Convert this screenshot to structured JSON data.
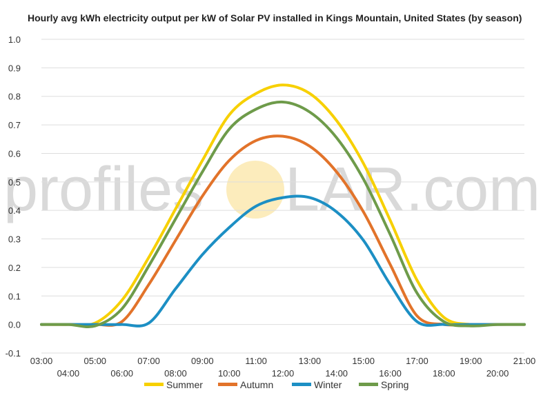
{
  "watermark": {
    "left": "profiles",
    "right": "LAR.com"
  },
  "chart_data": {
    "type": "line",
    "title": "Hourly avg kWh electricity output per kW of Solar PV installed in Kings Mountain, United States (by season)",
    "xlabel": "",
    "ylabel": "",
    "ylim": [
      -0.1,
      1.0
    ],
    "yticks": [
      "1.0",
      "0.9",
      "0.8",
      "0.7",
      "0.6",
      "0.5",
      "0.4",
      "0.3",
      "0.2",
      "0.1",
      "0.0",
      "-0.1"
    ],
    "x_ticks_upper": [
      "03:00",
      "05:00",
      "07:00",
      "09:00",
      "11:00",
      "13:00",
      "15:00",
      "17:00",
      "19:00",
      "21:00"
    ],
    "x_ticks_lower": [
      "04:00",
      "06:00",
      "08:00",
      "10:00",
      "12:00",
      "14:00",
      "16:00",
      "18:00",
      "20:00"
    ],
    "x": [
      "03:00",
      "04:00",
      "05:00",
      "06:00",
      "07:00",
      "08:00",
      "09:00",
      "10:00",
      "11:00",
      "12:00",
      "13:00",
      "14:00",
      "15:00",
      "16:00",
      "17:00",
      "18:00",
      "19:00",
      "20:00",
      "21:00"
    ],
    "grid": true,
    "legend_position": "bottom",
    "series": [
      {
        "name": "Summer",
        "color": "#f7d000",
        "values": [
          0.0,
          0.0,
          0.005,
          0.085,
          0.235,
          0.405,
          0.575,
          0.735,
          0.81,
          0.84,
          0.81,
          0.715,
          0.565,
          0.365,
          0.155,
          0.025,
          0.0,
          0.0,
          0.0
        ]
      },
      {
        "name": "Autumn",
        "color": "#e2732a",
        "values": [
          0.0,
          0.0,
          0.0,
          0.01,
          0.14,
          0.295,
          0.45,
          0.575,
          0.645,
          0.66,
          0.625,
          0.535,
          0.395,
          0.21,
          0.03,
          0.0,
          0.0,
          0.0,
          0.0
        ]
      },
      {
        "name": "Winter",
        "color": "#1c8fc4",
        "values": [
          0.0,
          0.0,
          0.0,
          0.0,
          0.005,
          0.125,
          0.245,
          0.34,
          0.415,
          0.445,
          0.445,
          0.395,
          0.295,
          0.14,
          0.01,
          0.0,
          0.0,
          0.0,
          0.0
        ]
      },
      {
        "name": "Spring",
        "color": "#6e9b4a",
        "values": [
          0.0,
          0.0,
          -0.005,
          0.055,
          0.205,
          0.37,
          0.535,
          0.685,
          0.755,
          0.78,
          0.745,
          0.655,
          0.51,
          0.315,
          0.11,
          0.01,
          -0.005,
          0.0,
          0.0
        ]
      }
    ]
  }
}
